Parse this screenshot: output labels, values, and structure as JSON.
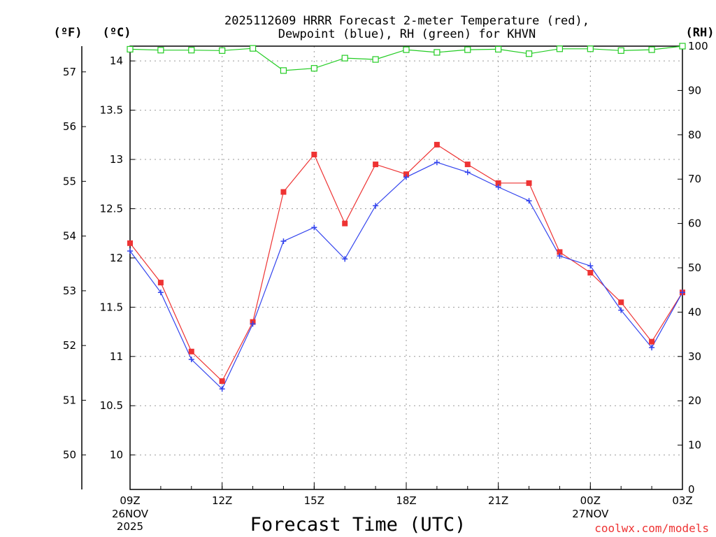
{
  "chart_data": {
    "type": "line",
    "title_line1": "2025112609 HRRR Forecast 2-meter Temperature (red),",
    "title_line2": "Dewpoint (blue), RH (green) for KHVN",
    "units": {
      "fahrenheit": "(ºF)",
      "celsius": "(ºC)",
      "rh": "(RH)"
    },
    "xlabel": "Forecast Time (UTC)",
    "credit": "coolwx.com/models",
    "hours": [
      0,
      1,
      2,
      3,
      4,
      5,
      6,
      7,
      8,
      9,
      10,
      11,
      12,
      13,
      14,
      15,
      16,
      17,
      18
    ],
    "xlim": [
      0,
      18
    ],
    "x_ticks": [
      {
        "hour": 0,
        "label": "09Z",
        "sub1": "26NOV",
        "sub2": "2025"
      },
      {
        "hour": 3,
        "label": "12Z",
        "sub1": "",
        "sub2": ""
      },
      {
        "hour": 6,
        "label": "15Z",
        "sub1": "",
        "sub2": ""
      },
      {
        "hour": 9,
        "label": "18Z",
        "sub1": "",
        "sub2": ""
      },
      {
        "hour": 12,
        "label": "21Z",
        "sub1": "",
        "sub2": ""
      },
      {
        "hour": 15,
        "label": "00Z",
        "sub1": "27NOV",
        "sub2": ""
      },
      {
        "hour": 18,
        "label": "03Z",
        "sub1": "",
        "sub2": ""
      }
    ],
    "celsius_axis": {
      "ylim": [
        9.65,
        14.15
      ],
      "ticks": [
        "10",
        "10.5",
        "11",
        "11.5",
        "12",
        "12.5",
        "13",
        "13.5",
        "14"
      ]
    },
    "fahrenheit_axis": {
      "ticks": [
        "50",
        "51",
        "52",
        "53",
        "54",
        "55",
        "56",
        "57"
      ]
    },
    "rh_axis": {
      "ylim": [
        0,
        100
      ],
      "ticks": [
        "0",
        "10",
        "20",
        "30",
        "40",
        "50",
        "60",
        "70",
        "80",
        "90",
        "100"
      ]
    },
    "series": [
      {
        "name": "Temperature",
        "unit": "C",
        "color": "#ee3333",
        "marker": "filled-square",
        "values": [
          12.15,
          11.75,
          11.05,
          10.75,
          11.35,
          12.67,
          13.05,
          12.35,
          12.95,
          12.85,
          13.15,
          12.95,
          12.76,
          12.76,
          12.06,
          11.85,
          11.55,
          11.15,
          11.65
        ]
      },
      {
        "name": "Dewpoint",
        "unit": "C",
        "color": "#3344ee",
        "marker": "plus",
        "values": [
          12.07,
          11.65,
          10.97,
          10.67,
          11.33,
          12.17,
          12.31,
          11.99,
          12.53,
          12.82,
          12.97,
          12.87,
          12.72,
          12.58,
          12.02,
          11.92,
          11.47,
          11.09,
          11.65
        ]
      },
      {
        "name": "RH",
        "unit": "%",
        "color": "#22cc22",
        "marker": "open-square",
        "values": [
          99.3,
          99.1,
          99.1,
          99.0,
          99.5,
          94.5,
          95.0,
          97.3,
          97.0,
          99.2,
          98.6,
          99.2,
          99.3,
          98.3,
          99.4,
          99.4,
          99.0,
          99.2,
          100
        ]
      }
    ]
  }
}
